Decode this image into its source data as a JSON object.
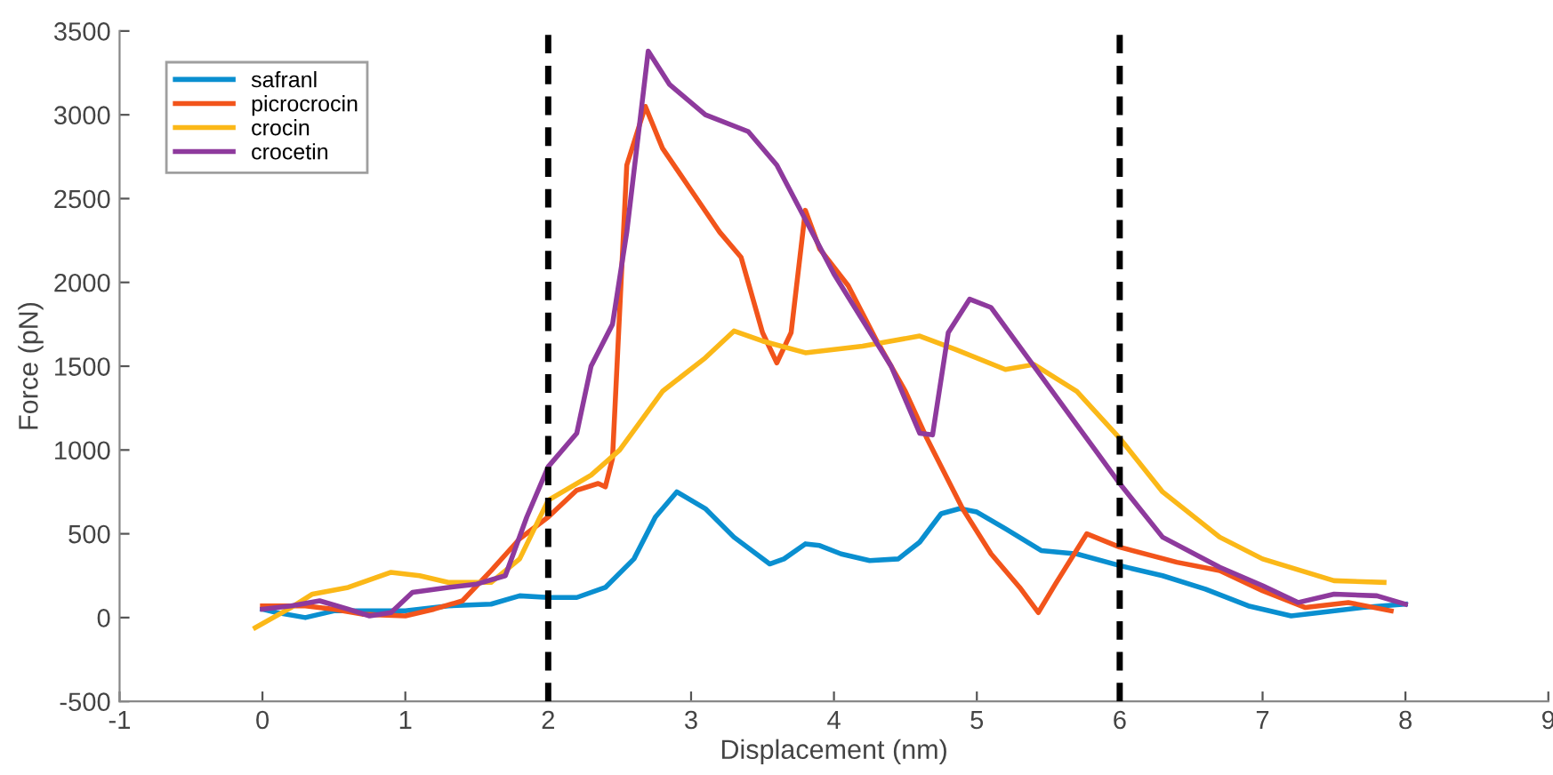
{
  "chart_data": {
    "type": "line",
    "xlabel": "Displacement (nm)",
    "ylabel": "Force (pN)",
    "xlim": [
      -1,
      9
    ],
    "xticks": [
      -1,
      0,
      1,
      2,
      3,
      4,
      5,
      6,
      7,
      8,
      9
    ],
    "ylim": [
      -500,
      3500
    ],
    "yticks": [
      -500,
      0,
      500,
      1000,
      1500,
      2000,
      2500,
      3000,
      3500
    ],
    "grid": false,
    "legend": "top left",
    "line_style": "solid",
    "marker": "none",
    "ref_lines": [
      {
        "axis": "x",
        "value": 2,
        "color": "#000000",
        "line_style": "dashed"
      },
      {
        "axis": "x",
        "value": 6,
        "color": "#000000",
        "line_style": "dashed"
      }
    ],
    "series": [
      {
        "name": "safranl",
        "color": "#0a8fd0",
        "x": [
          0,
          0.1,
          0.3,
          0.5,
          0.8,
          1.0,
          1.3,
          1.6,
          1.8,
          2.0,
          2.2,
          2.4,
          2.6,
          2.75,
          2.9,
          3.1,
          3.3,
          3.55,
          3.65,
          3.8,
          3.9,
          4.05,
          4.25,
          4.45,
          4.6,
          4.75,
          4.88,
          5.0,
          5.2,
          5.45,
          5.7,
          6.0,
          6.3,
          6.6,
          6.9,
          7.2,
          7.4,
          7.7,
          8.0
        ],
        "values": [
          50,
          30,
          0,
          40,
          40,
          40,
          70,
          80,
          130,
          120,
          120,
          180,
          350,
          600,
          750,
          650,
          480,
          320,
          350,
          440,
          430,
          380,
          340,
          350,
          450,
          620,
          650,
          630,
          530,
          400,
          380,
          310,
          250,
          170,
          70,
          10,
          30,
          60,
          80
        ]
      },
      {
        "name": "picrocrocin",
        "color": "#f2541b",
        "x": [
          0,
          0.3,
          0.5,
          0.7,
          1.0,
          1.2,
          1.4,
          1.6,
          1.8,
          2.0,
          2.2,
          2.35,
          2.4,
          2.45,
          2.55,
          2.68,
          2.8,
          3.0,
          3.2,
          3.35,
          3.5,
          3.6,
          3.7,
          3.8,
          3.9,
          4.1,
          4.3,
          4.5,
          4.65,
          4.9,
          5.1,
          5.3,
          5.43,
          5.55,
          5.77,
          6.0,
          6.4,
          6.7,
          7.0,
          7.3,
          7.6,
          7.9
        ],
        "values": [
          70,
          70,
          50,
          20,
          10,
          50,
          100,
          280,
          470,
          600,
          760,
          800,
          780,
          950,
          2700,
          3050,
          2800,
          2550,
          2300,
          2150,
          1700,
          1520,
          1700,
          2430,
          2200,
          1980,
          1650,
          1350,
          1070,
          650,
          380,
          180,
          30,
          200,
          500,
          420,
          330,
          280,
          160,
          60,
          90,
          40
        ]
      },
      {
        "name": "crocin",
        "color": "#fbb818",
        "x": [
          -0.05,
          0.2,
          0.35,
          0.6,
          0.9,
          1.1,
          1.3,
          1.6,
          1.8,
          2.0,
          2.3,
          2.5,
          2.8,
          3.1,
          3.3,
          3.5,
          3.8,
          4.2,
          4.6,
          4.85,
          5.2,
          5.4,
          5.7,
          6.0,
          6.3,
          6.7,
          7.0,
          7.5,
          7.85
        ],
        "values": [
          -60,
          60,
          140,
          180,
          270,
          250,
          210,
          210,
          350,
          700,
          850,
          1000,
          1350,
          1550,
          1710,
          1650,
          1580,
          1620,
          1680,
          1600,
          1480,
          1510,
          1350,
          1070,
          750,
          480,
          350,
          220,
          210
        ]
      },
      {
        "name": "crocetin",
        "color": "#8e3a9d",
        "x": [
          0,
          0.2,
          0.4,
          0.6,
          0.75,
          0.9,
          1.05,
          1.3,
          1.5,
          1.7,
          1.85,
          2.0,
          2.2,
          2.3,
          2.45,
          2.55,
          2.7,
          2.85,
          3.1,
          3.4,
          3.6,
          4.0,
          4.4,
          4.6,
          4.69,
          4.8,
          4.95,
          5.1,
          5.4,
          5.7,
          6.0,
          6.3,
          6.7,
          7.0,
          7.25,
          7.5,
          7.8,
          8.0
        ],
        "values": [
          50,
          70,
          100,
          50,
          10,
          30,
          150,
          180,
          200,
          250,
          600,
          900,
          1100,
          1500,
          1750,
          2300,
          3380,
          3180,
          3000,
          2900,
          2700,
          2050,
          1500,
          1100,
          1090,
          1700,
          1900,
          1850,
          1500,
          1150,
          800,
          480,
          300,
          190,
          90,
          140,
          130,
          80
        ]
      }
    ]
  }
}
